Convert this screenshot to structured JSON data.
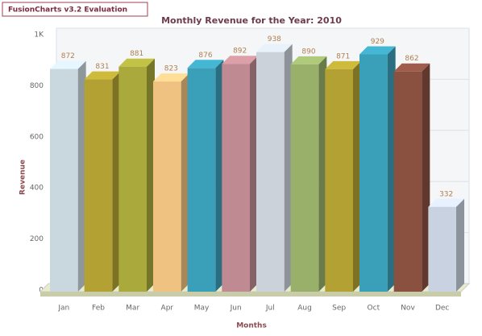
{
  "watermark": "FusionCharts v3.2 Evaluation",
  "chart_data": {
    "type": "bar3d",
    "title": "Monthly Revenue for the Year: 2010",
    "x_label": "Months",
    "y_label": "Revenue",
    "categories": [
      "Jan",
      "Feb",
      "Mar",
      "Apr",
      "May",
      "Jun",
      "Jul",
      "Aug",
      "Sep",
      "Oct",
      "Nov",
      "Dec"
    ],
    "values": [
      872,
      831,
      881,
      823,
      876,
      892,
      938,
      890,
      871,
      929,
      862,
      332
    ],
    "colors": [
      "#c9d7df",
      "#b3a233",
      "#a9a93c",
      "#f0c282",
      "#3a9fb8",
      "#c08a92",
      "#cbd2da",
      "#98b06a",
      "#b3a233",
      "#3a9fb8",
      "#8a5040",
      "#c9d2e0"
    ],
    "ylim": [
      0,
      1000
    ],
    "yticks": [
      0,
      200,
      400,
      600,
      800,
      {
        "value": 1000,
        "label": "1K"
      }
    ],
    "grid": true
  }
}
